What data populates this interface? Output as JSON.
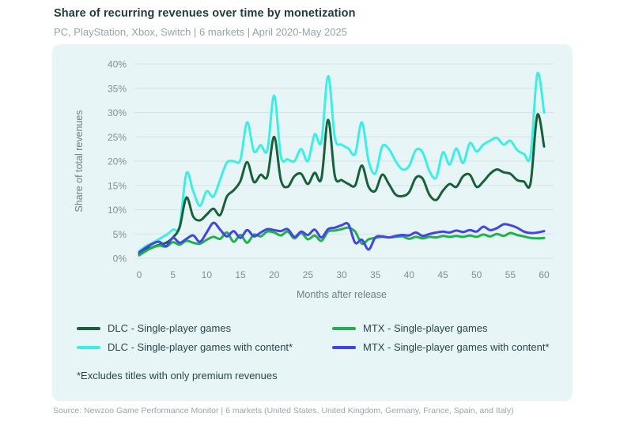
{
  "header": {
    "title": "Share of recurring revenues over time by monetization",
    "subtitle": "PC, PlayStation, Xbox, Switch | 6 markets | April 2020-May 2025"
  },
  "chart_data": {
    "type": "line",
    "xlabel": "Months after release",
    "ylabel": "Share of total revenues",
    "xlim": [
      0,
      60
    ],
    "ylim": [
      0,
      40
    ],
    "x_ticks": [
      0,
      5,
      10,
      15,
      20,
      25,
      30,
      35,
      40,
      45,
      50,
      55,
      60
    ],
    "y_ticks": [
      0,
      5,
      10,
      15,
      20,
      25,
      30,
      35,
      40
    ],
    "y_tick_suffix": "%",
    "grid": "horizontal",
    "legend_position": "bottom",
    "x_unit": "months after release (monthly values 0-60)",
    "y_unit": "percent of total revenues",
    "z_order": [
      1,
      0,
      2,
      3
    ],
    "series": [
      {
        "name": "DLC - Single-player games",
        "color": "#166139",
        "values": [
          0.8,
          1.8,
          2.3,
          2.8,
          3.2,
          4.3,
          6.4,
          12.5,
          8.6,
          7.8,
          9.0,
          10.2,
          8.9,
          12.7,
          14.0,
          15.9,
          19.8,
          15.7,
          17.2,
          16.9,
          25.0,
          16.1,
          14.7,
          16.9,
          17.4,
          15.3,
          17.6,
          16.4,
          28.5,
          16.9,
          16.1,
          15.3,
          15.0,
          19.1,
          14.7,
          13.9,
          17.2,
          15.3,
          13.1,
          12.8,
          13.6,
          16.6,
          16.4,
          13.1,
          12.0,
          13.9,
          15.3,
          14.7,
          16.9,
          17.2,
          14.7,
          15.8,
          17.4,
          18.3,
          17.7,
          17.4,
          16.1,
          15.8,
          15.5,
          29.5,
          23.0
        ]
      },
      {
        "name": "DLC - Single-player games with content*",
        "color": "#3deee4",
        "values": [
          1.5,
          2.5,
          3.2,
          4.0,
          4.8,
          5.9,
          6.7,
          17.5,
          13.8,
          10.8,
          13.8,
          12.7,
          16.2,
          19.7,
          20.0,
          20.3,
          28.0,
          22.0,
          23.3,
          22.3,
          33.5,
          21.0,
          20.4,
          20.0,
          22.5,
          20.0,
          25.5,
          24.0,
          37.5,
          24.8,
          23.4,
          22.6,
          21.5,
          28.0,
          20.0,
          17.5,
          23.0,
          22.5,
          20.0,
          18.3,
          19.0,
          22.3,
          21.8,
          18.0,
          16.6,
          21.8,
          19.3,
          22.6,
          19.6,
          23.7,
          22.0,
          23.4,
          24.2,
          24.8,
          23.4,
          24.2,
          22.3,
          21.5,
          21.2,
          38.0,
          30.0
        ]
      },
      {
        "name": "MTX - Single-player games",
        "color": "#1fb24c",
        "values": [
          0.6,
          1.5,
          2.2,
          2.6,
          2.4,
          3.3,
          2.8,
          3.6,
          3.2,
          3.0,
          3.8,
          4.4,
          4.0,
          5.3,
          3.4,
          4.8,
          3.2,
          4.9,
          4.5,
          5.5,
          5.3,
          4.7,
          5.5,
          4.1,
          5.2,
          3.9,
          4.7,
          3.6,
          5.5,
          5.7,
          6.0,
          6.3,
          5.5,
          3.0,
          3.9,
          4.2,
          4.4,
          4.3,
          4.4,
          4.5,
          4.0,
          4.4,
          4.1,
          4.4,
          4.3,
          4.6,
          4.4,
          4.6,
          4.4,
          4.7,
          4.4,
          4.9,
          4.5,
          5.0,
          4.6,
          5.2,
          4.8,
          4.5,
          4.2,
          4.1,
          4.2
        ]
      },
      {
        "name": "MTX - Single-player games with content*",
        "color": "#4146e2",
        "values": [
          1.2,
          2.2,
          3.0,
          3.4,
          2.5,
          4.2,
          3.2,
          4.0,
          4.7,
          3.4,
          5.3,
          7.3,
          5.9,
          4.5,
          5.6,
          4.2,
          5.8,
          4.5,
          5.3,
          6.0,
          5.8,
          5.6,
          6.0,
          4.4,
          5.5,
          4.8,
          5.9,
          4.3,
          6.0,
          6.3,
          6.8,
          7.0,
          3.2,
          3.8,
          1.8,
          4.3,
          4.5,
          4.3,
          4.6,
          4.8,
          4.7,
          5.3,
          4.6,
          5.0,
          5.3,
          5.5,
          5.3,
          5.7,
          5.4,
          5.8,
          5.5,
          6.5,
          5.8,
          6.2,
          7.0,
          6.8,
          6.3,
          5.5,
          5.2,
          5.3,
          5.6
        ]
      }
    ]
  },
  "legend": {
    "items": [
      {
        "label": "DLC - Single-player games",
        "color": "#166139"
      },
      {
        "label": "MTX - Single-player games",
        "color": "#1fb24c"
      },
      {
        "label": "DLC - Single-player games with content*",
        "color": "#3deee4"
      },
      {
        "label": "MTX - Single-player games with content*",
        "color": "#4146e2"
      }
    ]
  },
  "footnote": "*Excludes titles with only premium revenues",
  "source": "Source: Newzoo Game Performance Monitor | 6 markets (United States, United Kingdom, Germany, France, Spain, and Italy)",
  "colors": {
    "card_background": "#e8f5f6",
    "page_background": "#ffffff",
    "gridline": "#d7e3e3",
    "tick_text": "#81908f",
    "title_text": "#1e3b3e",
    "subtitle_text": "#96a3a6",
    "legend_text": "#28464b",
    "source_text": "#9aa5a8"
  }
}
